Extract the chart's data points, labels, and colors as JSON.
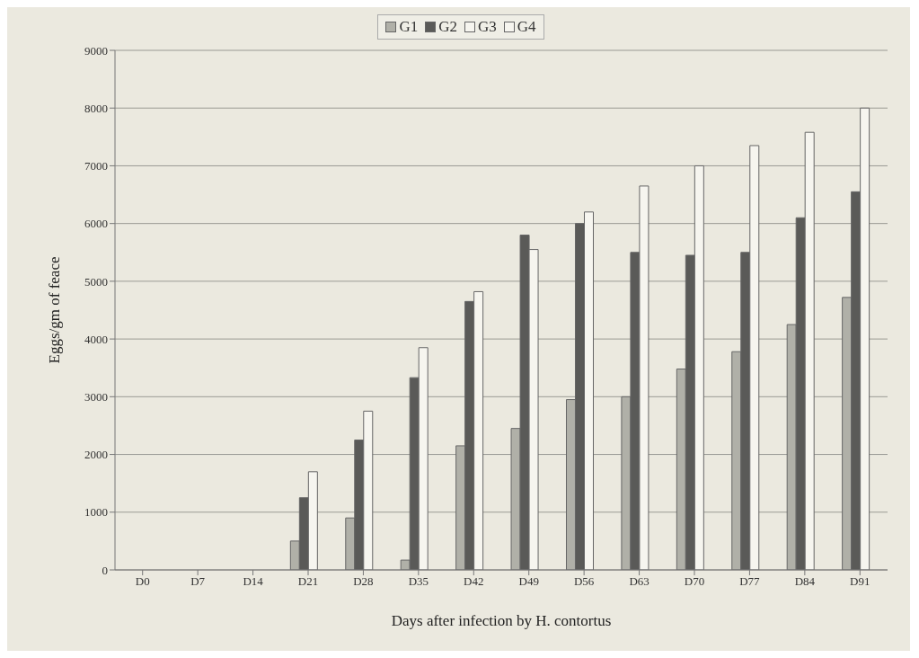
{
  "chart_data": {
    "type": "bar",
    "xlabel": "Days after infection by H. contortus",
    "ylabel": "Eggs/gm of feace",
    "categories": [
      "D0",
      "D7",
      "D14",
      "D21",
      "D28",
      "D35",
      "D42",
      "D49",
      "D56",
      "D63",
      "D70",
      "D77",
      "D84",
      "D91"
    ],
    "series": [
      {
        "name": "G1",
        "color": "#b0b0a8",
        "values": [
          0,
          0,
          0,
          500,
          900,
          170,
          2150,
          2450,
          2950,
          3000,
          3480,
          3780,
          4250,
          4720
        ]
      },
      {
        "name": "G2",
        "color": "#5a5a58",
        "values": [
          0,
          0,
          0,
          1250,
          2250,
          3330,
          4650,
          5800,
          6000,
          5500,
          5450,
          5500,
          6100,
          6550
        ]
      },
      {
        "name": "G3",
        "color": "#f6f5ef",
        "values": [
          0,
          0,
          0,
          1700,
          2750,
          3850,
          4820,
          5550,
          6200,
          6650,
          7000,
          7350,
          7580,
          8000
        ]
      },
      {
        "name": "G4",
        "color": "#f6f5ef",
        "values": [
          0,
          0,
          0,
          0,
          0,
          0,
          0,
          0,
          0,
          0,
          0,
          0,
          0,
          0
        ]
      }
    ],
    "ylim": [
      0,
      9000
    ],
    "yticks": [
      0,
      1000,
      2000,
      3000,
      4000,
      5000,
      6000,
      7000,
      8000,
      9000
    ],
    "grid": "y",
    "legend": "top"
  }
}
